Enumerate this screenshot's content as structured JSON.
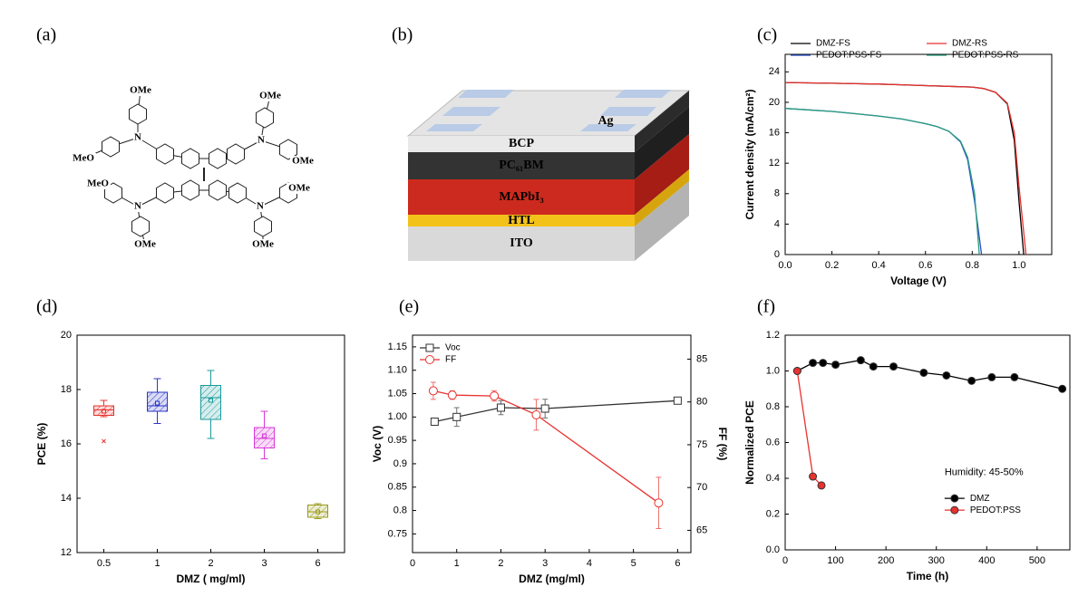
{
  "panel_labels": [
    "(a)",
    "(b)",
    "(c)",
    "(d)",
    "(e)",
    "(f)"
  ],
  "molecule": {
    "atoms": [
      "OMe",
      "OMe",
      "MeO",
      "OMe",
      "MeO",
      "OMe",
      "OMe",
      "OMe",
      "N",
      "N",
      "N",
      "N"
    ]
  },
  "device": {
    "layers": [
      "Ag",
      "BCP",
      "PC₆₁BM",
      "MAPbI₃",
      "HTL",
      "ITO"
    ]
  },
  "chart_data": [
    {
      "type": "line",
      "x_label": "Voltage (V)",
      "y_label": "Current density (mA/cm²)",
      "xlim": [
        0,
        1.14
      ],
      "xticks": [
        {
          "value": 0,
          "label": "0.0"
        },
        {
          "value": 0.2,
          "label": "0.2"
        },
        {
          "value": 0.4,
          "label": "0.4"
        },
        {
          "value": 0.6,
          "label": "0.6"
        },
        {
          "value": 0.8,
          "label": "0.8"
        },
        {
          "value": 1,
          "label": "1.0"
        }
      ],
      "ylim": [
        0,
        26.3
      ],
      "yticks": [
        0,
        4,
        8,
        12,
        16,
        20,
        24
      ],
      "legend": "top",
      "legend_columns": 2,
      "marker": "none",
      "series": [
        {
          "name": "DMZ-FS",
          "color": "#000000",
          "x": [
            0,
            0.1,
            0.2,
            0.3,
            0.4,
            0.5,
            0.6,
            0.7,
            0.8,
            0.85,
            0.9,
            0.95,
            0.98,
            1.0,
            1.02
          ],
          "values": [
            22.6,
            22.55,
            22.5,
            22.45,
            22.4,
            22.3,
            22.2,
            22.1,
            22.0,
            21.8,
            21.3,
            19.8,
            15,
            7,
            0
          ]
        },
        {
          "name": "DMZ-RS",
          "color": "#e8322e",
          "x": [
            0,
            0.1,
            0.2,
            0.3,
            0.4,
            0.5,
            0.6,
            0.7,
            0.8,
            0.85,
            0.9,
            0.95,
            0.98,
            1.0,
            1.03
          ],
          "values": [
            22.6,
            22.55,
            22.5,
            22.45,
            22.4,
            22.3,
            22.2,
            22.1,
            22.0,
            21.8,
            21.3,
            19.9,
            16,
            9,
            0
          ]
        },
        {
          "name": "PEDOT:PSS-FS",
          "color": "#2b4fc8",
          "x": [
            0,
            0.1,
            0.2,
            0.3,
            0.4,
            0.5,
            0.6,
            0.65,
            0.7,
            0.75,
            0.78,
            0.81,
            0.84
          ],
          "values": [
            19.2,
            19.0,
            18.8,
            18.5,
            18.2,
            17.8,
            17.2,
            16.8,
            16.2,
            14.8,
            12.5,
            7,
            0
          ]
        },
        {
          "name": "PEDOT:PSS-RS",
          "color": "#2a9d7c",
          "x": [
            0,
            0.1,
            0.2,
            0.3,
            0.4,
            0.5,
            0.6,
            0.65,
            0.7,
            0.75,
            0.78,
            0.81,
            0.83
          ],
          "values": [
            19.2,
            19.0,
            18.8,
            18.5,
            18.2,
            17.8,
            17.2,
            16.8,
            16.2,
            14.9,
            12.8,
            8,
            0
          ]
        }
      ]
    },
    {
      "type": "box",
      "x_label": "DMZ ( mg/ml)",
      "y_label": "PCE (%)",
      "categories": [
        "0.5",
        "1",
        "2",
        "3",
        "6"
      ],
      "ylim": [
        12,
        20
      ],
      "yticks": [
        12,
        14,
        16,
        18,
        20
      ],
      "boxes": [
        {
          "color": "#e8322e",
          "min": 17.0,
          "q1": 17.05,
          "median": 17.25,
          "q3": 17.4,
          "max": 17.6,
          "mean": 17.2,
          "outliers": [
            16.1
          ]
        },
        {
          "color": "#2b35c8",
          "min": 16.75,
          "q1": 17.2,
          "median": 17.4,
          "q3": 17.9,
          "max": 18.4,
          "mean": 17.5,
          "outliers": []
        },
        {
          "color": "#1a9a9a",
          "min": 16.2,
          "q1": 16.9,
          "median": 17.7,
          "q3": 18.15,
          "max": 18.7,
          "mean": 17.6,
          "outliers": []
        },
        {
          "color": "#d63ad6",
          "min": 15.45,
          "q1": 15.85,
          "median": 16.2,
          "q3": 16.6,
          "max": 17.2,
          "mean": 16.3,
          "outliers": []
        },
        {
          "color": "#9a9a1a",
          "min": 13.25,
          "q1": 13.3,
          "median": 13.5,
          "q3": 13.75,
          "max": 13.8,
          "mean": 13.5,
          "outliers": []
        }
      ]
    },
    {
      "type": "line",
      "x_label": "DMZ (mg/ml)",
      "y_label": "Voc (V)",
      "y2_label": "FF (%)",
      "xlim": [
        0,
        6.3
      ],
      "xticks": [
        0,
        1,
        2,
        3,
        4,
        5,
        6
      ],
      "ylim": [
        0.71,
        1.175
      ],
      "yticks": [
        0.75,
        0.8,
        0.85,
        0.9,
        0.95,
        {
          "value": 1,
          "label": "1.00"
        },
        1.05,
        {
          "value": 1.1,
          "label": "1.10"
        },
        1.15
      ],
      "y2lim": [
        62.4,
        87.8
      ],
      "y2ticks": [
        65,
        70,
        75,
        80,
        85
      ],
      "legend": "top-left",
      "series": [
        {
          "name": "Voc",
          "color": "#333333",
          "marker": "square",
          "x": [
            0.5,
            1,
            2,
            3,
            6
          ],
          "values": [
            0.99,
            1.0,
            1.02,
            1.018,
            1.035
          ],
          "errors": [
            0.005,
            0.02,
            0.015,
            0.02,
            0.005
          ]
        },
        {
          "name": "FF",
          "color": "#e8322e",
          "marker": "circle",
          "axis": "y2",
          "x": [
            0.47,
            0.9,
            1.85,
            2.8,
            5.57
          ],
          "values": [
            81.3,
            80.8,
            80.7,
            78.5,
            68.2
          ],
          "errors": [
            1,
            0.5,
            0.6,
            1.8,
            3
          ]
        }
      ]
    },
    {
      "type": "line",
      "x_label": "Time (h)",
      "y_label": "Normalized PCE",
      "annotation": "Humidity: 45-50%",
      "xlim": [
        0,
        565
      ],
      "xticks": [
        0,
        100,
        200,
        300,
        400,
        500
      ],
      "ylim": [
        0,
        1.2
      ],
      "yticks": [
        {
          "value": 0,
          "label": "0.0"
        },
        0.2,
        0.4,
        0.6,
        0.8,
        {
          "value": 1,
          "label": "1.0"
        },
        1.2
      ],
      "legend": "bottom-right",
      "series": [
        {
          "name": "DMZ",
          "color": "#000000",
          "marker": "filled-circle",
          "x": [
            24,
            55,
            75,
            100,
            150,
            175,
            215,
            275,
            320,
            370,
            410,
            455,
            550
          ],
          "values": [
            1.0,
            1.045,
            1.045,
            1.035,
            1.06,
            1.025,
            1.025,
            0.99,
            0.975,
            0.945,
            0.965,
            0.965,
            0.9
          ]
        },
        {
          "name": "PEDOT:PSS",
          "color": "#e8322e",
          "marker": "filled-circle",
          "x": [
            24,
            55,
            72
          ],
          "values": [
            1.0,
            0.41,
            0.36
          ]
        }
      ]
    }
  ]
}
